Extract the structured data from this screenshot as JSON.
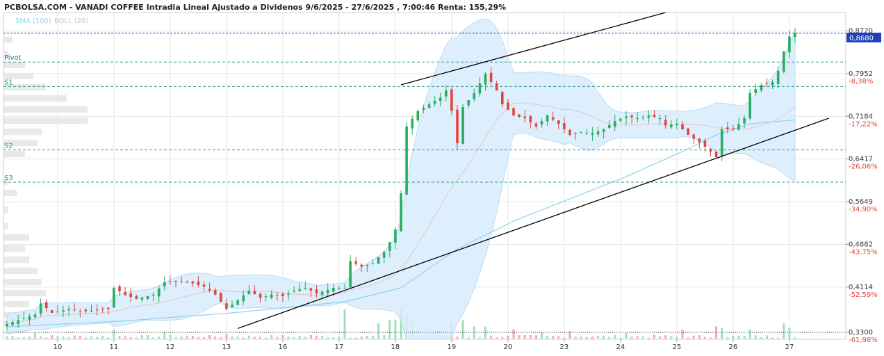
{
  "chart_data": {
    "type": "candlestick",
    "title": "PCBOLSA.COM - VANADI COFFEE Intradia Lineal Ajustado a Dividenos 9/6/2025 - 27/6/2025 , 7:00:46 Renta: 155,29%",
    "legend": {
      "sma": "SMA (100)",
      "boll": "BOLL (20)"
    },
    "current_price": "0,8680",
    "colors": {
      "up": "#27ae60",
      "down": "#e0463f",
      "sma": "#8fd0f0",
      "boll_fill": "#d7ecfb",
      "boll_mid": "#e8c3c3",
      "grid": "#e6e6e6",
      "pivot": "#3a9a8a",
      "current": "#1f3fbf"
    },
    "y_ticks": [
      {
        "value": 0.872,
        "label": "0,8720",
        "pct": ""
      },
      {
        "value": 0.7952,
        "label": "0,7952",
        "pct": "-8,38%"
      },
      {
        "value": 0.7184,
        "label": "0,7184",
        "pct": "-17,22%"
      },
      {
        "value": 0.6417,
        "label": "0,6417",
        "pct": "-26,06%"
      },
      {
        "value": 0.5649,
        "label": "0,5649",
        "pct": "-34,90%"
      },
      {
        "value": 0.4882,
        "label": "0,4882",
        "pct": "-43,75%"
      },
      {
        "value": 0.4114,
        "label": "0,4114",
        "pct": "-52,59%"
      },
      {
        "value": 0.33,
        "label": "0,3300",
        "pct": "-61,98%"
      }
    ],
    "x_labels": [
      {
        "day": "10",
        "index": 9
      },
      {
        "day": "11",
        "index": 19
      },
      {
        "day": "12",
        "index": 29
      },
      {
        "day": "13",
        "index": 39
      },
      {
        "day": "16",
        "index": 49
      },
      {
        "day": "17",
        "index": 59
      },
      {
        "day": "18",
        "index": 69
      },
      {
        "day": "19",
        "index": 79
      },
      {
        "day": "20",
        "index": 89
      },
      {
        "day": "23",
        "index": 99
      },
      {
        "day": "24",
        "index": 109
      },
      {
        "day": "25",
        "index": 119
      },
      {
        "day": "26",
        "index": 129
      },
      {
        "day": "27",
        "index": 139
      }
    ],
    "pivots": [
      {
        "label": "Pivot",
        "value": 0.816
      },
      {
        "label": "S1",
        "value": 0.772
      },
      {
        "label": "S2",
        "value": 0.658
      },
      {
        "label": "S3",
        "value": 0.6
      }
    ],
    "ylim": [
      0.3175,
      0.905
    ],
    "n_bars": 141,
    "ohlc_path": [
      [
        0,
        0.345
      ],
      [
        2,
        0.352
      ],
      [
        5,
        0.362
      ],
      [
        6,
        0.382
      ],
      [
        8,
        0.365
      ],
      [
        11,
        0.372
      ],
      [
        13,
        0.367
      ],
      [
        16,
        0.37
      ],
      [
        18,
        0.372
      ],
      [
        19,
        0.41
      ],
      [
        21,
        0.397
      ],
      [
        23,
        0.39
      ],
      [
        26,
        0.398
      ],
      [
        28,
        0.42
      ],
      [
        31,
        0.422
      ],
      [
        33,
        0.418
      ],
      [
        35,
        0.412
      ],
      [
        37,
        0.398
      ],
      [
        39,
        0.372
      ],
      [
        41,
        0.388
      ],
      [
        43,
        0.405
      ],
      [
        45,
        0.392
      ],
      [
        47,
        0.398
      ],
      [
        49,
        0.395
      ],
      [
        51,
        0.405
      ],
      [
        53,
        0.41
      ],
      [
        55,
        0.4
      ],
      [
        58,
        0.41
      ],
      [
        60,
        0.41
      ],
      [
        61,
        0.458
      ],
      [
        63,
        0.448
      ],
      [
        65,
        0.455
      ],
      [
        67,
        0.475
      ],
      [
        68,
        0.492
      ],
      [
        69,
        0.515
      ],
      [
        70,
        0.58
      ],
      [
        71,
        0.7
      ],
      [
        73,
        0.728
      ],
      [
        75,
        0.74
      ],
      [
        77,
        0.752
      ],
      [
        78,
        0.765
      ],
      [
        79,
        0.728
      ],
      [
        80,
        0.67
      ],
      [
        81,
        0.735
      ],
      [
        83,
        0.76
      ],
      [
        85,
        0.795
      ],
      [
        87,
        0.765
      ],
      [
        88,
        0.74
      ],
      [
        90,
        0.72
      ],
      [
        92,
        0.715
      ],
      [
        94,
        0.7
      ],
      [
        96,
        0.72
      ],
      [
        98,
        0.705
      ],
      [
        100,
        0.685
      ],
      [
        102,
        0.69
      ],
      [
        104,
        0.688
      ],
      [
        106,
        0.695
      ],
      [
        108,
        0.71
      ],
      [
        110,
        0.718
      ],
      [
        112,
        0.715
      ],
      [
        114,
        0.72
      ],
      [
        116,
        0.715
      ],
      [
        117,
        0.702
      ],
      [
        119,
        0.705
      ],
      [
        121,
        0.685
      ],
      [
        123,
        0.672
      ],
      [
        125,
        0.655
      ],
      [
        126,
        0.645
      ],
      [
        127,
        0.695
      ],
      [
        129,
        0.695
      ],
      [
        131,
        0.715
      ],
      [
        132,
        0.76
      ],
      [
        134,
        0.775
      ],
      [
        136,
        0.78
      ],
      [
        137,
        0.8
      ],
      [
        138,
        0.835
      ],
      [
        139,
        0.862
      ],
      [
        140,
        0.868
      ]
    ],
    "sma_path": [
      [
        0,
        0.34
      ],
      [
        20,
        0.35
      ],
      [
        40,
        0.365
      ],
      [
        60,
        0.385
      ],
      [
        70,
        0.41
      ],
      [
        80,
        0.48
      ],
      [
        90,
        0.53
      ],
      [
        100,
        0.57
      ],
      [
        110,
        0.61
      ],
      [
        120,
        0.655
      ],
      [
        126,
        0.685
      ],
      [
        132,
        0.705
      ],
      [
        140,
        0.712
      ]
    ],
    "volumes": [
      [
        5,
        0.2
      ],
      [
        19,
        0.3
      ],
      [
        28,
        0.2
      ],
      [
        39,
        0.15
      ],
      [
        54,
        0.12
      ],
      [
        60,
        0.95
      ],
      [
        66,
        0.5
      ],
      [
        68,
        0.6
      ],
      [
        69,
        0.6
      ],
      [
        70,
        1.0
      ],
      [
        71,
        0.8
      ],
      [
        72,
        0.55
      ],
      [
        79,
        0.55
      ],
      [
        81,
        0.6
      ],
      [
        83,
        0.4
      ],
      [
        85,
        0.4
      ],
      [
        90,
        0.3
      ],
      [
        95,
        0.2
      ],
      [
        100,
        0.25
      ],
      [
        110,
        0.2
      ],
      [
        120,
        0.3
      ],
      [
        126,
        0.4
      ],
      [
        127,
        0.35
      ],
      [
        132,
        0.3
      ],
      [
        138,
        0.5
      ],
      [
        139,
        0.35
      ]
    ],
    "volume_profile": [
      {
        "value": 0.855,
        "width": 0.1
      },
      {
        "value": 0.83,
        "width": 0.05
      },
      {
        "value": 0.81,
        "width": 0.25
      },
      {
        "value": 0.79,
        "width": 0.35
      },
      {
        "value": 0.77,
        "width": 0.5
      },
      {
        "value": 0.75,
        "width": 0.75
      },
      {
        "value": 0.73,
        "width": 1.0
      },
      {
        "value": 0.71,
        "width": 1.0
      },
      {
        "value": 0.69,
        "width": 0.45
      },
      {
        "value": 0.67,
        "width": 0.4
      },
      {
        "value": 0.65,
        "width": 0.25
      },
      {
        "value": 0.6,
        "width": 0.05
      },
      {
        "value": 0.58,
        "width": 0.15
      },
      {
        "value": 0.55,
        "width": 0.05
      },
      {
        "value": 0.52,
        "width": 0.05
      },
      {
        "value": 0.5,
        "width": 0.3
      },
      {
        "value": 0.48,
        "width": 0.25
      },
      {
        "value": 0.46,
        "width": 0.3
      },
      {
        "value": 0.44,
        "width": 0.4
      },
      {
        "value": 0.42,
        "width": 0.45
      },
      {
        "value": 0.4,
        "width": 0.5
      },
      {
        "value": 0.38,
        "width": 0.3
      },
      {
        "value": 0.36,
        "width": 0.25
      },
      {
        "value": 0.345,
        "width": 0.05
      }
    ],
    "trendlines": [
      {
        "name": "upper-channel",
        "from": [
          70,
          0.775
        ],
        "to": [
          117,
          0.905
        ]
      },
      {
        "name": "lower-channel",
        "from": [
          41,
          0.337
        ],
        "to": [
          146,
          0.715
        ]
      }
    ]
  }
}
